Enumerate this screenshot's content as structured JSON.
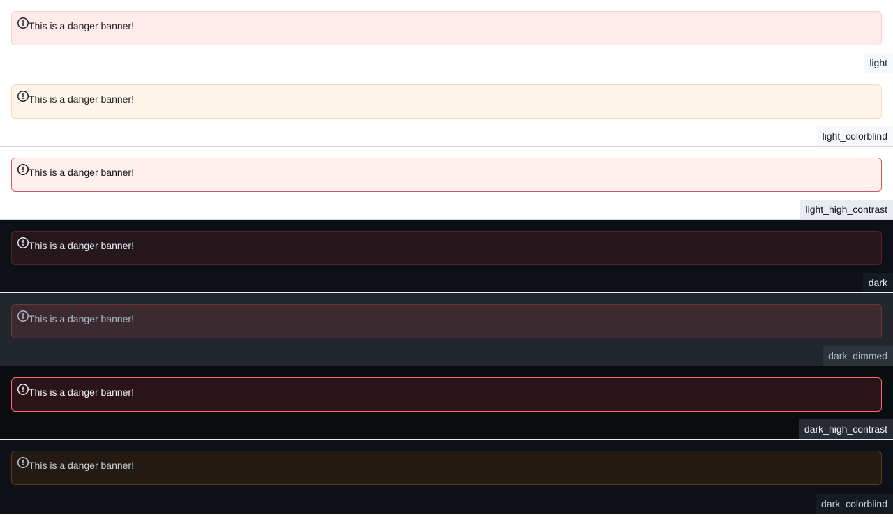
{
  "themes": [
    {
      "label": "light",
      "banner_text": "This is a danger banner!",
      "colors": {
        "bg": "#ffffff",
        "banner_bg": "#ffebe9",
        "banner_border": "#ffcecb",
        "text": "#1f2328",
        "icon": "#1f2328",
        "label_bg": "#f6f8fa",
        "label_fg": "#1f2328"
      }
    },
    {
      "label": "light_colorblind",
      "banner_text": "This is a danger banner!",
      "colors": {
        "bg": "#ffffff",
        "banner_bg": "#fff5e8",
        "banner_border": "#ffd8b5",
        "text": "#1f2328",
        "icon": "#1f2328",
        "label_bg": "#f6f8fa",
        "label_fg": "#1f2328"
      }
    },
    {
      "label": "light_high_contrast",
      "banner_text": "This is a danger banner!",
      "colors": {
        "bg": "#ffffff",
        "banner_bg": "#fff0ee",
        "banner_border": "#d5565e",
        "text": "#0e1116",
        "icon": "#0e1116",
        "label_bg": "#e7ecf0",
        "label_fg": "#0e1116"
      }
    },
    {
      "label": "dark",
      "banner_text": "This is a danger banner!",
      "colors": {
        "bg": "#0d1117",
        "banner_bg": "#25171c",
        "banner_border": "#5d1f23",
        "text": "#e6edf3",
        "icon": "#e6edf3",
        "label_bg": "#161b22",
        "label_fg": "#e6edf3"
      }
    },
    {
      "label": "dark_dimmed",
      "banner_text": "This is a danger banner!",
      "colors": {
        "bg": "#22272e",
        "banner_bg": "#3b2b31",
        "banner_border": "#6e3630",
        "text": "#adbac7",
        "icon": "#adbac7",
        "label_bg": "#2d333b",
        "label_fg": "#adbac7"
      }
    },
    {
      "label": "dark_high_contrast",
      "banner_text": "This is a danger banner!",
      "colors": {
        "bg": "#0a0c10",
        "banner_bg": "#2a1418",
        "banner_border": "#ff6a69",
        "text": "#f0f3f6",
        "icon": "#f0f3f6",
        "label_bg": "#272b33",
        "label_fg": "#f0f3f6"
      }
    },
    {
      "label": "dark_colorblind",
      "banner_text": "This is a danger banner!",
      "colors": {
        "bg": "#0d1117",
        "banner_bg": "#221a13",
        "banner_border": "#603b18",
        "text": "#c9d1d9",
        "icon": "#c9d1d9",
        "label_bg": "#161b22",
        "label_fg": "#c9d1d9"
      }
    }
  ]
}
